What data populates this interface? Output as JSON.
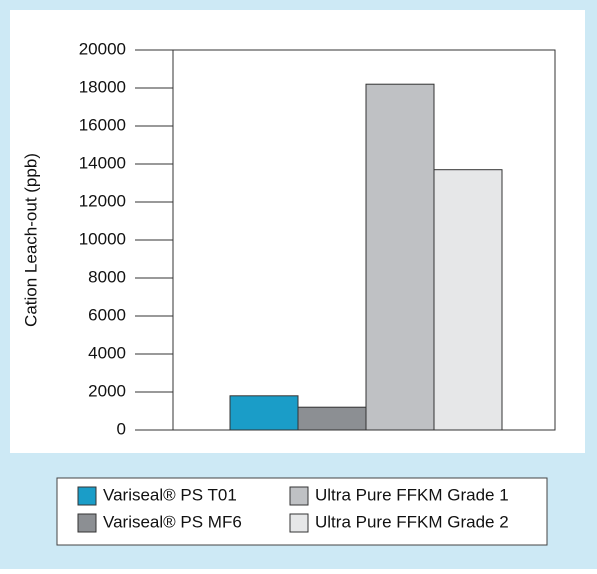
{
  "chart_data": {
    "type": "bar",
    "y_label": "Cation Leach-out (ppb)",
    "series": [
      {
        "name": "Variseal® PS T01",
        "color": "#1a9dc8",
        "values": [
          1800
        ]
      },
      {
        "name": "Variseal® PS MF6",
        "color": "#8c8f93",
        "values": [
          1200
        ]
      },
      {
        "name": "Ultra Pure FFKM Grade 1",
        "color": "#bfc1c4",
        "values": [
          18200
        ]
      },
      {
        "name": "Ultra Pure FFKM Grade 2",
        "color": "#e6e7e8",
        "values": [
          13700
        ]
      }
    ],
    "ylim": [
      0,
      20000
    ],
    "yticks": [
      0,
      2000,
      4000,
      6000,
      8000,
      10000,
      12000,
      14000,
      16000,
      18000,
      20000
    ],
    "legend": "bottom"
  }
}
